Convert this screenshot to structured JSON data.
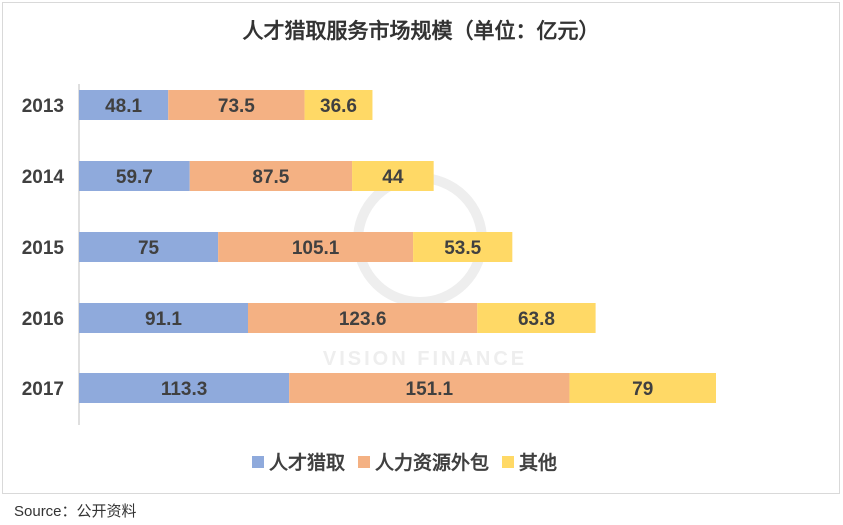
{
  "chart_data": {
    "type": "bar",
    "orientation": "horizontal",
    "stacked": true,
    "title": "人才猎取服务市场规模（单位：亿元）",
    "categories": [
      "2013",
      "2014",
      "2015",
      "2016",
      "2017"
    ],
    "series": [
      {
        "name": "人才猎取",
        "values": [
          48.1,
          59.7,
          75,
          91.1,
          113.3
        ],
        "color": "#8FAADC"
      },
      {
        "name": "人力资源外包",
        "values": [
          73.5,
          87.5,
          105.1,
          123.6,
          151.1
        ],
        "color": "#F4B183"
      },
      {
        "name": "其他",
        "values": [
          36.6,
          44,
          53.5,
          63.8,
          79
        ],
        "color": "#FFD966"
      }
    ],
    "legend_position": "bottom",
    "grid": false,
    "data_labels": true
  },
  "watermark": "VISION FINANCE",
  "source": "Source：公开资料"
}
